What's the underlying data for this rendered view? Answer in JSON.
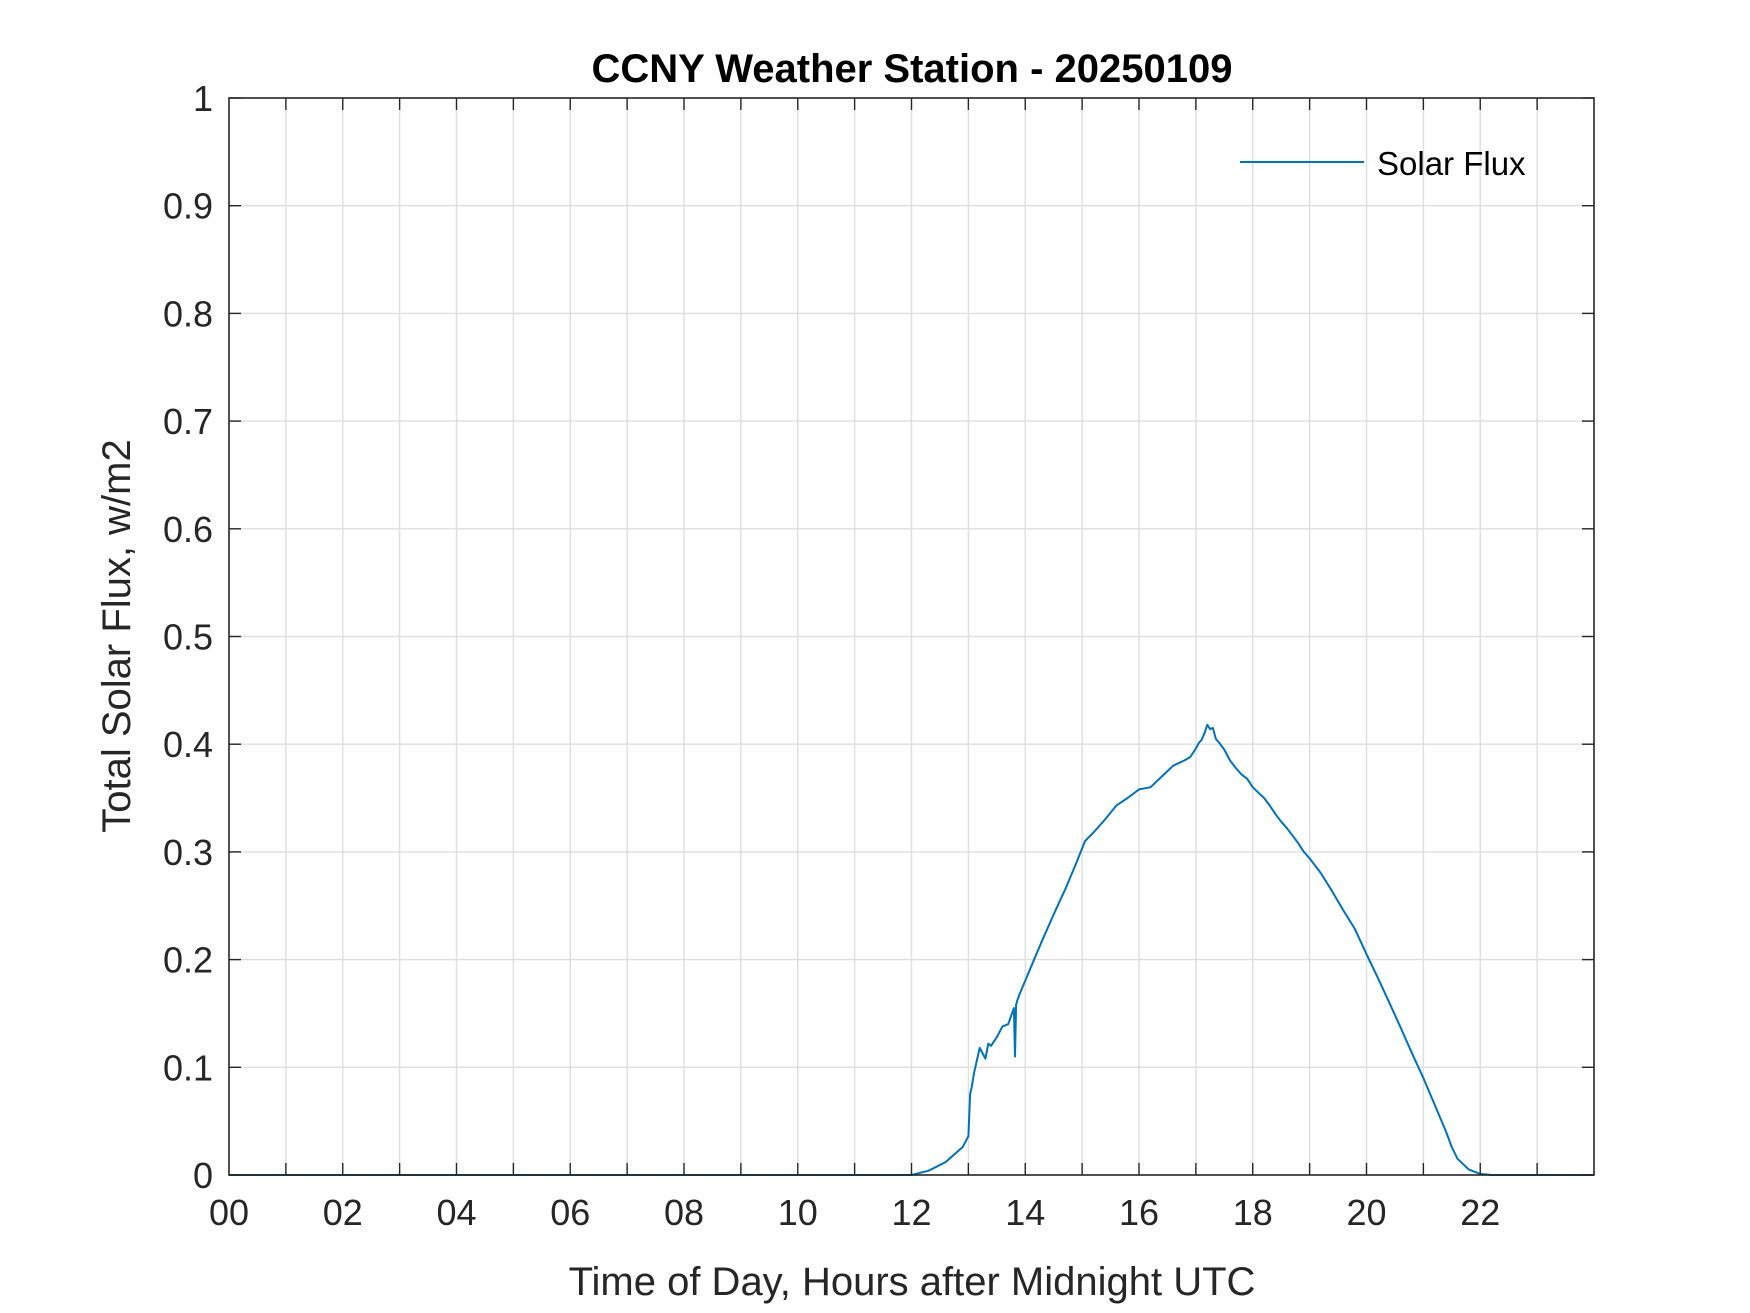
{
  "chart_data": {
    "type": "line",
    "title": "CCNY Weather Station - 20250109",
    "xlabel": "Time of Day, Hours after Midnight UTC",
    "ylabel": "Total Solar Flux, w/m2",
    "xlim": [
      0,
      24
    ],
    "ylim": [
      0,
      1
    ],
    "x_ticks": [
      0,
      2,
      4,
      6,
      8,
      10,
      12,
      14,
      16,
      18,
      20,
      22
    ],
    "x_tick_labels": [
      "00",
      "02",
      "04",
      "06",
      "08",
      "10",
      "12",
      "14",
      "16",
      "18",
      "20",
      "22"
    ],
    "y_ticks": [
      0,
      0.1,
      0.2,
      0.3,
      0.4,
      0.5,
      0.6,
      0.7,
      0.8,
      0.9,
      1
    ],
    "y_tick_labels": [
      "0",
      "0.1",
      "0.2",
      "0.3",
      "0.4",
      "0.5",
      "0.6",
      "0.7",
      "0.8",
      "0.9",
      "1"
    ],
    "grid": true,
    "legend_position": "top-right",
    "series": [
      {
        "name": "Solar Flux",
        "color": "#0072BD",
        "x": [
          0,
          12.0,
          12.3,
          12.6,
          12.9,
          13.0,
          13.03,
          13.06,
          13.1,
          13.2,
          13.3,
          13.35,
          13.4,
          13.5,
          13.6,
          13.7,
          13.8,
          13.82,
          13.84,
          13.86,
          13.9,
          14.1,
          14.3,
          14.5,
          14.7,
          14.9,
          15.05,
          15.2,
          15.4,
          15.6,
          15.8,
          16.0,
          16.2,
          16.4,
          16.6,
          16.8,
          16.9,
          17.0,
          17.05,
          17.1,
          17.15,
          17.2,
          17.25,
          17.3,
          17.35,
          17.4,
          17.5,
          17.6,
          17.7,
          17.8,
          17.9,
          18.0,
          18.1,
          18.2,
          18.3,
          18.4,
          18.5,
          18.6,
          18.7,
          18.8,
          18.9,
          19.0,
          19.2,
          19.4,
          19.6,
          19.8,
          20.0,
          20.2,
          20.4,
          20.6,
          20.8,
          21.0,
          21.2,
          21.4,
          21.5,
          21.6,
          21.7,
          21.8,
          22.0,
          22.2,
          22.5,
          23.0,
          24.0
        ],
        "y": [
          0,
          0,
          0.004,
          0.012,
          0.026,
          0.036,
          0.075,
          0.082,
          0.095,
          0.118,
          0.108,
          0.122,
          0.12,
          0.128,
          0.138,
          0.14,
          0.155,
          0.11,
          0.158,
          0.162,
          0.168,
          0.193,
          0.218,
          0.242,
          0.265,
          0.29,
          0.31,
          0.318,
          0.33,
          0.343,
          0.35,
          0.358,
          0.36,
          0.37,
          0.38,
          0.385,
          0.388,
          0.396,
          0.401,
          0.404,
          0.41,
          0.418,
          0.414,
          0.415,
          0.405,
          0.402,
          0.395,
          0.385,
          0.378,
          0.372,
          0.368,
          0.36,
          0.355,
          0.35,
          0.343,
          0.335,
          0.328,
          0.322,
          0.315,
          0.308,
          0.3,
          0.294,
          0.28,
          0.263,
          0.245,
          0.228,
          0.205,
          0.183,
          0.16,
          0.137,
          0.113,
          0.09,
          0.065,
          0.04,
          0.026,
          0.015,
          0.01,
          0.005,
          0.001,
          0,
          0,
          0,
          0
        ]
      }
    ]
  }
}
